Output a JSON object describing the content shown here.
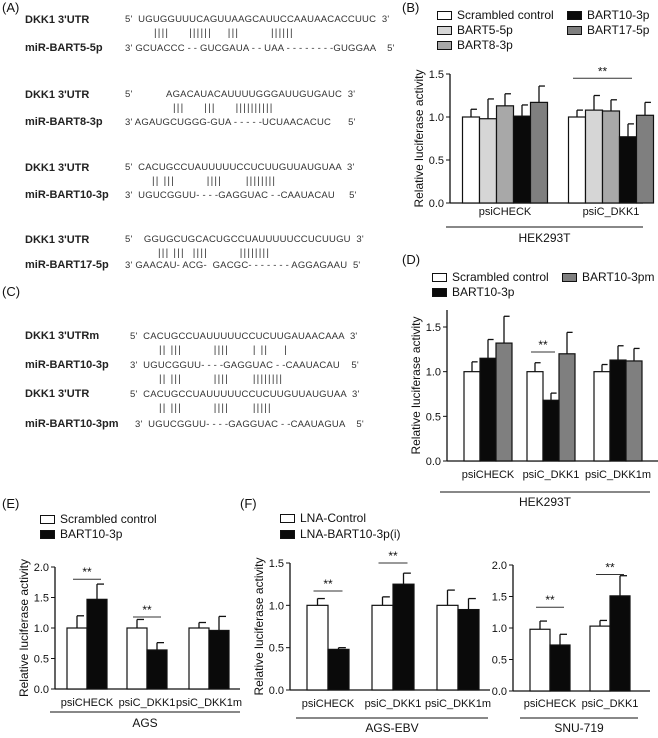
{
  "panel_labels": {
    "a": "(A)",
    "b": "(B)",
    "c": "(C)",
    "d": "(D)",
    "e": "(E)",
    "f": "(F)"
  },
  "alignments_a": [
    {
      "target": "DKK1 3'UTR",
      "target_seq": "5'  UGUGGUUUCAGUUAAGCAUUCCAAUAACACCUUC  3'",
      "pairs": "||||     ||||||    |||        ||||||",
      "mirna": "miR-BART5-5p",
      "mirna_seq": "3' GCUACCC - - GUCGAUA - - UAA - - - - - - - -GUGGAA    5'"
    },
    {
      "target": "DKK1 3'UTR",
      "target_seq": "5'            AGACAUACAUUUUGGGAUUGUGAUC  3'",
      "pairs": "|||     |||     ||||||||||",
      "mirna": "miR-BART8-3p",
      "mirna_seq": "3' AGAUGCUGGG-GUA - - - - -UCUAACACUC      5'"
    },
    {
      "target": "DKK1 3'UTR",
      "target_seq": "5'  CACUGCCUAUUUUUCCUCUUGUUAUGUAA  3'",
      "pairs": "|| |||        ||||      ||||||||",
      "mirna": "miR-BART10-3p",
      "mirna_seq": "3'  UGUCGGUU- - - -GAGGUAC - -CAAUACAU     5'"
    },
    {
      "target": "DKK1 3'UTR",
      "target_seq": "5'    GGUGCUGCACUGCCUAUUUUUCCUCUUGU  3'",
      "pairs": "||| |||  ||||        ||||||||",
      "mirna": "miR-BART17-5p",
      "mirna_seq": "3' GAACAU- ACG-  GACGC- - - - - - - AGGAGAAU  5'"
    }
  ],
  "alignments_c": {
    "row1_name": "DKK1 3'UTRm",
    "row1_seq": "5'  CACUGCCUAUUUUUCCUCUUGAUAACAAA  3'",
    "pairs1": "|| |||        ||||      | ||    |",
    "row2_name": "miR-BART10-3p",
    "row2_seq": "3'  UGUCGGUU- - - -GAGGUAC - -CAAUACAU    5'",
    "pairs2": "|| |||        ||||      ||||||||",
    "row3_name": "DKK1 3'UTR",
    "row3_seq": "5'  CACUGCCUAUUUUUCCUCUUGUUAUGUAA  3'",
    "pairs3": "|| |||        ||||      |||||",
    "row4_name": "miR-BART10-3pm",
    "row4_seq": "3'  UGUCGGUU- - - -GAGGUAC - -CAAUAGUA    5'"
  },
  "legends": {
    "b": [
      "Scrambled control",
      "BART5-5p",
      "BART8-3p",
      "BART10-3p",
      "BART17-5p"
    ],
    "d": [
      "Scrambled control",
      "BART10-3p",
      "BART10-3pm"
    ],
    "e": [
      "Scrambled control",
      "BART10-3p"
    ],
    "f": [
      "LNA-Control",
      "LNA-BART10-3p(i)"
    ]
  },
  "colors": {
    "white": "#ffffff",
    "light_gray": "#d6d6d6",
    "mid_gray": "#a8a8a8",
    "black": "#0a0a0a",
    "dark_gray": "#7f7f7f"
  },
  "chart_data": [
    {
      "id": "b",
      "type": "bar",
      "ylabel": "Relative luciferase activity",
      "xlabel": "HEK293T",
      "ylim": [
        0,
        1.5
      ],
      "yticks": [
        "0.0",
        "0.5",
        "1.0",
        "1.5"
      ],
      "categories": [
        "psiCHECK",
        "psiC_DKK1"
      ],
      "series": [
        {
          "name": "Scrambled control",
          "color": "#ffffff",
          "values": [
            1.0,
            1.0
          ],
          "errors": [
            0.09,
            0.08
          ]
        },
        {
          "name": "BART5-5p",
          "color": "#d6d6d6",
          "values": [
            0.98,
            1.08
          ],
          "errors": [
            0.23,
            0.17
          ]
        },
        {
          "name": "BART8-3p",
          "color": "#a8a8a8",
          "values": [
            1.13,
            1.07
          ],
          "errors": [
            0.14,
            0.13
          ]
        },
        {
          "name": "BART10-3p",
          "color": "#0a0a0a",
          "values": [
            1.01,
            0.77
          ],
          "errors": [
            0.13,
            0.15
          ]
        },
        {
          "name": "BART17-5p",
          "color": "#7f7f7f",
          "values": [
            1.17,
            1.02
          ],
          "errors": [
            0.19,
            0.15
          ]
        }
      ],
      "significance": [
        {
          "category": 1,
          "from": 0,
          "to": 3,
          "y": 1.45,
          "label": "**"
        }
      ]
    },
    {
      "id": "d",
      "type": "bar",
      "ylabel": "Relative luciferase activity",
      "xlabel": "HEK293T",
      "ylim": [
        0,
        1.7
      ],
      "yticks": [
        "0.0",
        "0.5",
        "1.0",
        "1.5"
      ],
      "categories": [
        "psiCHECK",
        "psiC_DKK1",
        "psiC_DKK1m"
      ],
      "series": [
        {
          "name": "Scrambled control",
          "color": "#ffffff",
          "values": [
            1.0,
            1.0,
            1.0
          ],
          "errors": [
            0.11,
            0.1,
            0.08
          ]
        },
        {
          "name": "BART10-3p",
          "color": "#0a0a0a",
          "values": [
            1.15,
            0.68,
            1.13
          ],
          "errors": [
            0.21,
            0.08,
            0.16
          ]
        },
        {
          "name": "BART10-3pm",
          "color": "#7f7f7f",
          "values": [
            1.32,
            1.2,
            1.12
          ],
          "errors": [
            0.3,
            0.24,
            0.14
          ]
        }
      ],
      "significance": [
        {
          "category": 1,
          "from": 0,
          "to": 1,
          "y": 1.22,
          "label": "**"
        }
      ]
    },
    {
      "id": "e",
      "type": "bar",
      "ylabel": "Relative luciferase activity",
      "xlabel": "AGS",
      "ylim": [
        0,
        2.0
      ],
      "yticks": [
        "0.0",
        "0.5",
        "1.0",
        "1.5",
        "2.0"
      ],
      "categories": [
        "psiCHECK",
        "psiC_DKK1",
        "psiC_DKK1m"
      ],
      "series": [
        {
          "name": "Scrambled control",
          "color": "#ffffff",
          "values": [
            1.0,
            1.0,
            1.0
          ],
          "errors": [
            0.2,
            0.14,
            0.09
          ]
        },
        {
          "name": "BART10-3p",
          "color": "#0a0a0a",
          "values": [
            1.47,
            0.64,
            0.96
          ],
          "errors": [
            0.25,
            0.12,
            0.23
          ]
        }
      ],
      "significance": [
        {
          "category": 0,
          "from": 0,
          "to": 1,
          "y": 1.8,
          "label": "**"
        },
        {
          "category": 1,
          "from": 0,
          "to": 1,
          "y": 1.18,
          "label": "**"
        }
      ]
    },
    {
      "id": "f1",
      "type": "bar",
      "ylabel": "Relative luciferase activity",
      "xlabel": "AGS-EBV",
      "ylim": [
        0,
        1.5
      ],
      "yticks": [
        "0.0",
        "0.5",
        "1.0",
        "1.5"
      ],
      "categories": [
        "psiCHECK",
        "psiC_DKK1",
        "psiC_DKK1m"
      ],
      "series": [
        {
          "name": "LNA-Control",
          "color": "#ffffff",
          "values": [
            1.0,
            1.0,
            1.0
          ],
          "errors": [
            0.08,
            0.1,
            0.18
          ]
        },
        {
          "name": "LNA-BART10-3p(i)",
          "color": "#0a0a0a",
          "values": [
            0.48,
            1.25,
            0.95
          ],
          "errors": [
            0.02,
            0.13,
            0.13
          ]
        }
      ],
      "significance": [
        {
          "category": 0,
          "from": 0,
          "to": 1,
          "y": 1.17,
          "label": "**"
        },
        {
          "category": 1,
          "from": 0,
          "to": 1,
          "y": 1.5,
          "label": "**"
        }
      ]
    },
    {
      "id": "f2",
      "type": "bar",
      "ylabel": "",
      "xlabel": "SNU-719",
      "ylim": [
        0,
        2.0
      ],
      "yticks": [
        "0.0",
        "0.5",
        "1.0",
        "1.5",
        "2.0"
      ],
      "categories": [
        "psiCHECK",
        "psiC_DKK1"
      ],
      "series": [
        {
          "name": "LNA-Control",
          "color": "#ffffff",
          "values": [
            0.98,
            1.03
          ],
          "errors": [
            0.13,
            0.09
          ]
        },
        {
          "name": "LNA-BART10-3p(i)",
          "color": "#0a0a0a",
          "values": [
            0.73,
            1.51
          ],
          "errors": [
            0.17,
            0.32
          ]
        }
      ],
      "significance": [
        {
          "category": 0,
          "from": 0,
          "to": 1,
          "y": 1.33,
          "label": "**"
        },
        {
          "category": 1,
          "from": 0,
          "to": 1,
          "y": 1.85,
          "label": "**"
        }
      ]
    }
  ]
}
